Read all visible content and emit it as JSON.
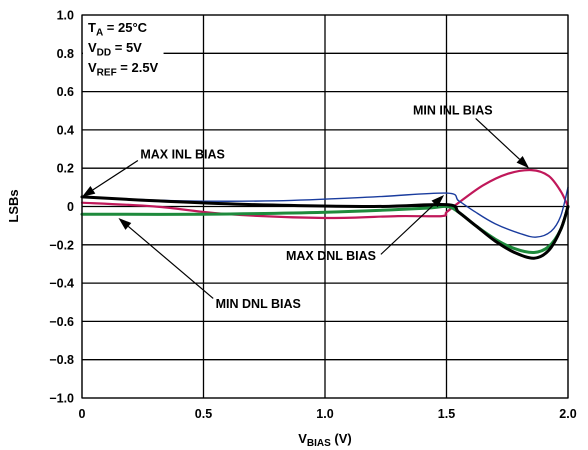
{
  "chart_data": {
    "type": "line",
    "xlabel": "V",
    "xlabel_sub": "BIAS",
    "xlabel_unit": " (V)",
    "ylabel": "LSBs",
    "xlim": [
      0,
      2.0
    ],
    "ylim": [
      -1.0,
      1.0
    ],
    "grid": true,
    "x_ticks": [
      0,
      0.5,
      1.0,
      1.5,
      2.0
    ],
    "x_tick_labels": [
      "0",
      "0.5",
      "1.0",
      "1.5",
      "2.0"
    ],
    "y_ticks": [
      1.0,
      0.8,
      0.6,
      0.4,
      0.2,
      0,
      -0.2,
      -0.4,
      -0.6,
      -0.8,
      -1.0
    ],
    "y_tick_labels": [
      "1.0",
      "0.8",
      "0.6",
      "0.4",
      "0.2",
      "0",
      "−0.2",
      "−0.4",
      "−0.6",
      "−0.8",
      "−1.0"
    ],
    "conditions": [
      {
        "main": "T",
        "sub": "A",
        "rest": " = 25°C"
      },
      {
        "main": "V",
        "sub": "DD",
        "rest": " = 5V"
      },
      {
        "main": "V",
        "sub": "REF",
        "rest": " = 2.5V"
      }
    ],
    "series": [
      {
        "name": "MIN INL BIAS",
        "color": "#c0185a",
        "width": 2.2,
        "points": [
          [
            0,
            0.02
          ],
          [
            0.3,
            0.0
          ],
          [
            0.6,
            -0.04
          ],
          [
            1.0,
            -0.06
          ],
          [
            1.3,
            -0.05
          ],
          [
            1.48,
            -0.05
          ],
          [
            1.5,
            -0.03
          ],
          [
            1.55,
            0.02
          ],
          [
            1.65,
            0.11
          ],
          [
            1.75,
            0.17
          ],
          [
            1.85,
            0.19
          ],
          [
            1.92,
            0.16
          ],
          [
            1.97,
            0.08
          ],
          [
            2.0,
            0.0
          ]
        ]
      },
      {
        "name": "MAX DNL BIAS",
        "color": "#1a3c9e",
        "width": 1.4,
        "points": [
          [
            0,
            0.05
          ],
          [
            0.4,
            0.03
          ],
          [
            0.8,
            0.03
          ],
          [
            1.2,
            0.05
          ],
          [
            1.5,
            0.07
          ],
          [
            1.55,
            0.03
          ],
          [
            1.62,
            -0.03
          ],
          [
            1.7,
            -0.09
          ],
          [
            1.8,
            -0.14
          ],
          [
            1.87,
            -0.16
          ],
          [
            1.93,
            -0.13
          ],
          [
            1.97,
            -0.05
          ],
          [
            2.0,
            0.1
          ]
        ]
      },
      {
        "name": "MIN DNL BIAS",
        "color": "#1e8a3c",
        "width": 3.0,
        "points": [
          [
            0,
            -0.04
          ],
          [
            0.5,
            -0.04
          ],
          [
            1.0,
            -0.03
          ],
          [
            1.4,
            -0.01
          ],
          [
            1.5,
            0.0
          ],
          [
            1.55,
            -0.03
          ],
          [
            1.62,
            -0.1
          ],
          [
            1.7,
            -0.17
          ],
          [
            1.78,
            -0.22
          ],
          [
            1.86,
            -0.24
          ],
          [
            1.92,
            -0.21
          ],
          [
            1.97,
            -0.12
          ],
          [
            2.0,
            0.0
          ]
        ]
      },
      {
        "name": "MAX INL BIAS",
        "color": "#000000",
        "width": 3.0,
        "points": [
          [
            0,
            0.05
          ],
          [
            0.3,
            0.03
          ],
          [
            0.7,
            0.01
          ],
          [
            1.2,
            0.0
          ],
          [
            1.5,
            0.01
          ],
          [
            1.55,
            -0.03
          ],
          [
            1.62,
            -0.1
          ],
          [
            1.7,
            -0.18
          ],
          [
            1.78,
            -0.24
          ],
          [
            1.86,
            -0.27
          ],
          [
            1.92,
            -0.23
          ],
          [
            1.97,
            -0.12
          ],
          [
            2.0,
            0.0
          ]
        ]
      }
    ],
    "annotations": [
      {
        "text": "MIN INL BIAS",
        "anchor": "end",
        "label_xy": [
          1.69,
          0.48
        ],
        "line_from": [
          1.62,
          0.46
        ],
        "arrow_to": [
          1.84,
          0.2
        ]
      },
      {
        "text": "MAX INL BIAS",
        "anchor": "start",
        "label_xy": [
          0.24,
          0.25
        ],
        "line_from": [
          0.23,
          0.24
        ],
        "arrow_to": [
          0.0,
          0.05
        ]
      },
      {
        "text": "MAX DNL BIAS",
        "anchor": "end",
        "label_xy": [
          1.21,
          -0.28
        ],
        "line_from": [
          1.23,
          -0.25
        ],
        "arrow_to": [
          1.49,
          0.06
        ]
      },
      {
        "text": "MIN DNL BIAS",
        "anchor": "start",
        "label_xy": [
          0.55,
          -0.53
        ],
        "line_from": [
          0.54,
          -0.48
        ],
        "arrow_to": [
          0.15,
          -0.06
        ]
      }
    ]
  }
}
